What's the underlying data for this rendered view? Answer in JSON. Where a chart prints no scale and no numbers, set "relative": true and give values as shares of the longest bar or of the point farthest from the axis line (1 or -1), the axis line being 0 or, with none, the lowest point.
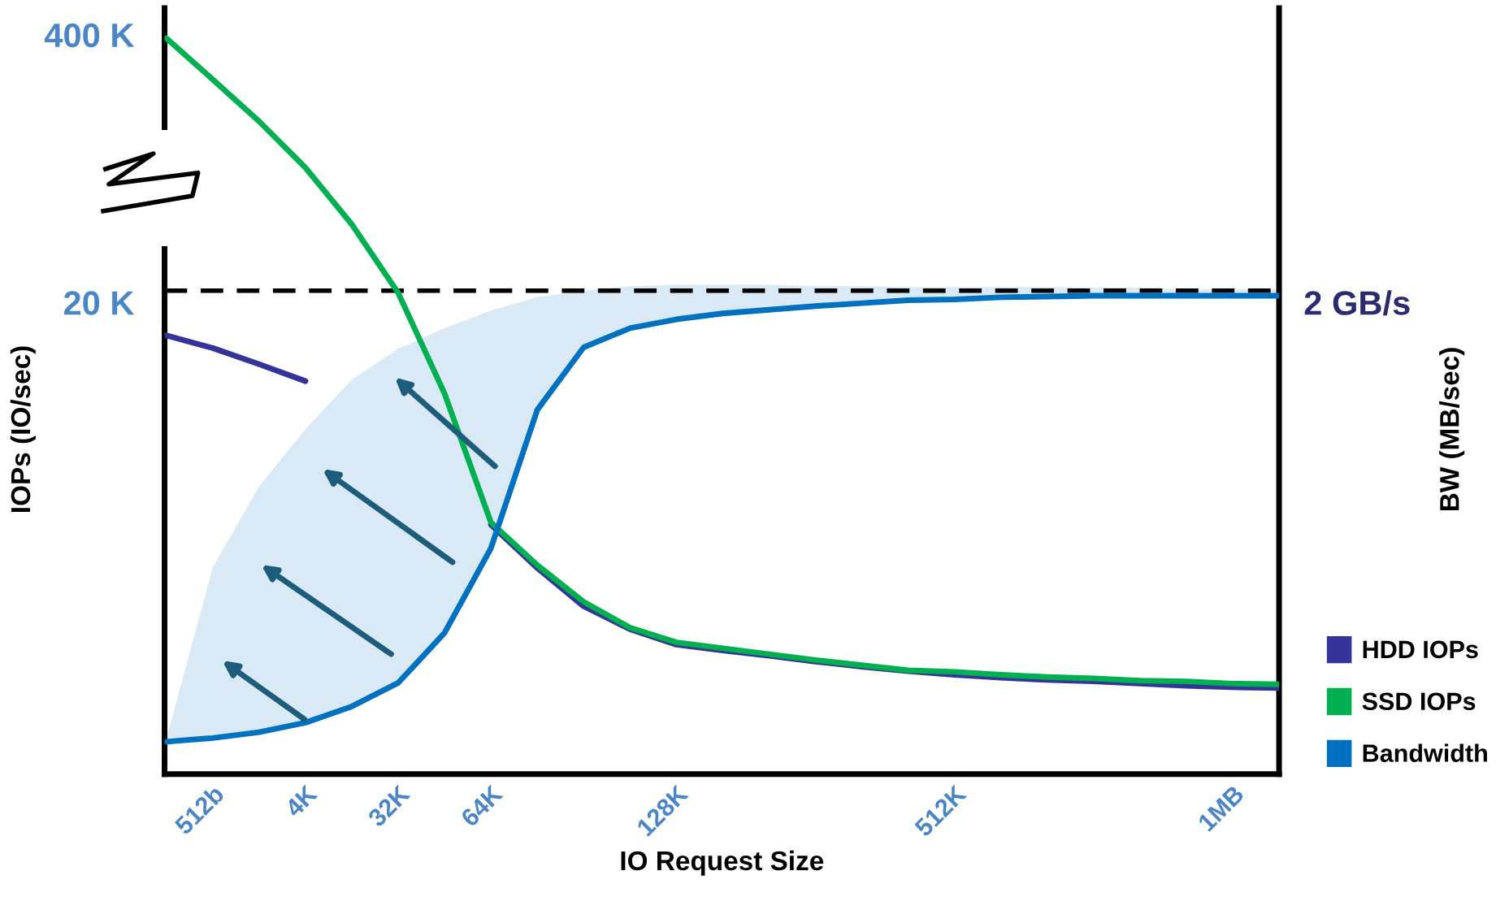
{
  "chart_data": {
    "type": "line",
    "relative": true,
    "xlabel": "IO Request Size",
    "categories": [
      null,
      "512b",
      null,
      "4K",
      null,
      "32K",
      null,
      "64K",
      null,
      null,
      null,
      "128K",
      null,
      null,
      null,
      null,
      null,
      "512K",
      null,
      null,
      null,
      null,
      null,
      "1MB",
      null
    ],
    "annotations": [
      "400 K",
      "20 K",
      "2 GB/s",
      "BW (MB/sec)",
      "IOPs (IO/sec)"
    ],
    "ref_lines": [
      {
        "axis": "y",
        "value": 0.657,
        "color": "#000000",
        "line_style": "dashed"
      }
    ],
    "legend": "bottom right",
    "grid": false,
    "series": [
      {
        "name": "HDD IOPs",
        "color": "#333399",
        "values": [
          0.596,
          0.579,
          0.557,
          0.534,
          null,
          null,
          null,
          0.339,
          0.28,
          0.228,
          0.197,
          0.176,
          0.168,
          0.161,
          0.153,
          0.146,
          0.14,
          0.135,
          0.131,
          0.128,
          0.126,
          0.123,
          0.12,
          0.118,
          0.117
        ]
      },
      {
        "name": "SSD IOPs",
        "color": "#00b050",
        "values": [
          1.0,
          0.944,
          0.887,
          0.824,
          0.747,
          0.654,
          0.517,
          0.342,
          0.284,
          0.234,
          0.199,
          0.179,
          0.171,
          0.163,
          0.155,
          0.148,
          0.141,
          0.139,
          0.135,
          0.132,
          0.13,
          0.127,
          0.126,
          0.123,
          0.122
        ]
      },
      {
        "name": "Bandwidth",
        "color": "#0070c0",
        "values": [
          0.044,
          0.049,
          0.057,
          0.07,
          0.092,
          0.124,
          0.192,
          0.307,
          0.495,
          0.58,
          0.606,
          0.618,
          0.626,
          0.631,
          0.636,
          0.64,
          0.644,
          0.645,
          0.648,
          0.649,
          0.65,
          0.65,
          0.65,
          0.65,
          0.65
        ],
        "lower": [
          0.044,
          0.049,
          0.057,
          0.07,
          0.092,
          0.124,
          0.192,
          0.307,
          0.495,
          0.58,
          0.606,
          0.618,
          0.626,
          0.631,
          0.636,
          0.64,
          0.644,
          0.645,
          0.648,
          0.649,
          0.65,
          0.65,
          0.65,
          0.65,
          0.65
        ],
        "upper": [
          0.048,
          0.281,
          0.391,
          0.469,
          0.536,
          0.578,
          0.606,
          0.63,
          0.648,
          0.657,
          0.663,
          0.665,
          0.665,
          0.665,
          0.663,
          0.663,
          0.662,
          0.662,
          0.662,
          0.662,
          0.661,
          0.661,
          0.659,
          0.659,
          0.659
        ]
      }
    ]
  }
}
